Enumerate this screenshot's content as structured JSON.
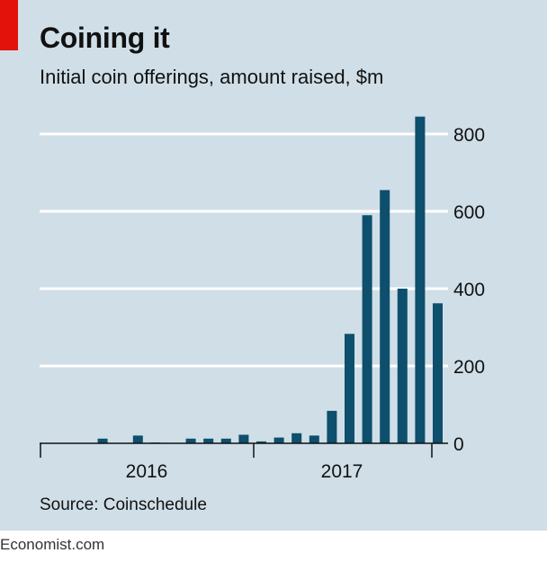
{
  "header": {
    "title": "Coining it",
    "subtitle": "Initial coin offerings, amount raised, $m"
  },
  "footer": {
    "source": "Source: Coinschedule",
    "brand": "Economist.com"
  },
  "colors": {
    "background": "#cfdee7",
    "bar": "#0d4f6c",
    "accent_red": "#e3120b",
    "gridline": "#ffffff"
  },
  "chart_data": {
    "type": "bar",
    "title": "Coining it",
    "subtitle": "Initial coin offerings, amount raised, $m",
    "xlabel": "",
    "ylabel": "$m",
    "ylim": [
      0,
      800
    ],
    "yticks": [
      0,
      200,
      400,
      600,
      800
    ],
    "ytick_labels": [
      "0",
      "200",
      "400",
      "600",
      "800"
    ],
    "y_axis_side": "right",
    "gridlines": true,
    "x_group_labels": [
      "2016",
      "2017"
    ],
    "categories": [
      "Jan 2016",
      "Feb 2016",
      "Mar 2016",
      "Apr 2016",
      "May 2016",
      "Jun 2016",
      "Jul 2016",
      "Aug 2016",
      "Sep 2016",
      "Oct 2016",
      "Nov 2016",
      "Dec 2016",
      "Jan 2017",
      "Feb 2017",
      "Mar 2017",
      "Apr 2017",
      "May 2017",
      "Jun 2017",
      "Jul 2017",
      "Aug 2017",
      "Sep 2017",
      "Oct 2017"
    ],
    "series": [
      {
        "name": "Amount raised",
        "values": [
          0,
          12,
          0,
          20,
          2,
          0,
          12,
          12,
          12,
          22,
          5,
          15,
          26,
          20,
          84,
          283,
          590,
          655,
          400,
          845,
          362,
          0
        ]
      }
    ],
    "source": "Source: Coinschedule"
  }
}
